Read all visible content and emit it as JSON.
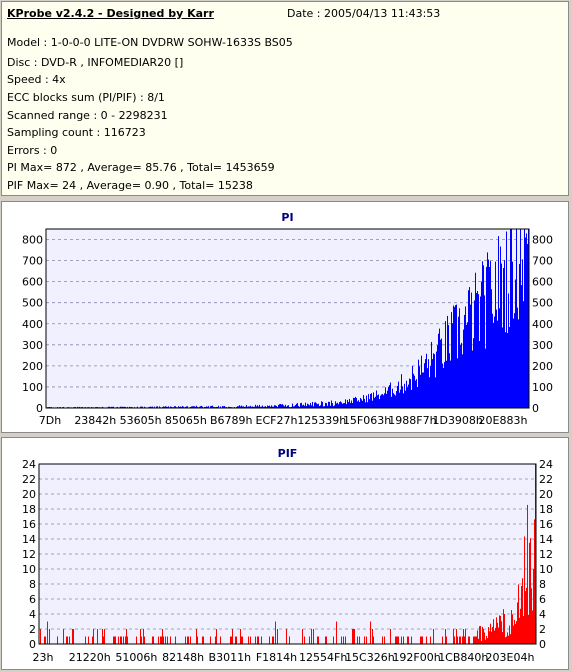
{
  "info": {
    "title": "KProbe v2.4.2 - Designed by Karr",
    "date": "Date : 2005/04/13 11:43:53",
    "lines": [
      "Model : 1-0-0-0 LITE-ON DVDRW SOHW-1633S BS05",
      "Disc : DVD-R , INFOMEDIAR20 []",
      "Speed : 4x",
      "ECC blocks sum (PI/PIF) : 8/1",
      "Scanned range : 0 - 2298231",
      "Sampling count : 116723",
      "Errors : 0",
      "PI Max= 872 , Average= 85.76 , Total= 1453659",
      "PIF Max= 24 , Average= 0.90 , Total= 15238"
    ]
  },
  "chart_data": [
    {
      "type": "bar",
      "title": "PI",
      "color": "#0000ff",
      "ylim": [
        0,
        850
      ],
      "yticks": [
        0,
        100,
        200,
        300,
        400,
        500,
        600,
        700,
        800
      ],
      "xticks": [
        "7Dh",
        "23842h",
        "53605h",
        "85065h",
        "B6789h",
        "ECF27h",
        "125339h",
        "15F063h",
        "1988F7h",
        "1D3908h",
        "20E883h"
      ],
      "grid": true,
      "profile": [
        [
          0,
          3
        ],
        [
          0.2,
          4
        ],
        [
          0.4,
          8
        ],
        [
          0.5,
          12
        ],
        [
          0.6,
          25
        ],
        [
          0.65,
          40
        ],
        [
          0.7,
          70
        ],
        [
          0.75,
          130
        ],
        [
          0.8,
          230
        ],
        [
          0.85,
          360
        ],
        [
          0.9,
          480
        ],
        [
          0.95,
          620
        ],
        [
          0.98,
          740
        ],
        [
          1.0,
          800
        ]
      ]
    },
    {
      "type": "bar",
      "title": "PIF",
      "color": "#ff0000",
      "ylim": [
        0,
        24
      ],
      "yticks": [
        0,
        2,
        4,
        6,
        8,
        10,
        12,
        14,
        16,
        18,
        20,
        22,
        24
      ],
      "xticks": [
        "23h",
        "21220h",
        "51006h",
        "82148h",
        "B3011h",
        "F1814h",
        "12554Fh",
        "15C326h",
        "192F00h",
        "1CB840h",
        "203E04h"
      ],
      "grid": true,
      "profile": [
        [
          0,
          0.3
        ],
        [
          0.7,
          0.4
        ],
        [
          0.85,
          0.8
        ],
        [
          0.9,
          1.5
        ],
        [
          0.93,
          2.5
        ],
        [
          0.96,
          4
        ],
        [
          0.98,
          10
        ],
        [
          1.0,
          18
        ]
      ]
    }
  ]
}
